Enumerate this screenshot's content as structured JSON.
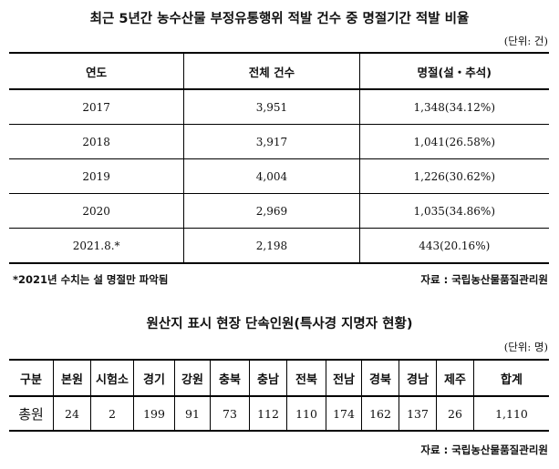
{
  "table1": {
    "title": "최근 5년간 농수산물 부정유통행위 적발 건수 중 명절기간 적발 비율",
    "unit": "(단위: 건)",
    "headers": [
      "연도",
      "전체 건수",
      "명절(설・추석)"
    ],
    "rows": [
      [
        "2017",
        "3,951",
        "1,348(34.12%)"
      ],
      [
        "2018",
        "3,917",
        "1,041(26.58%)"
      ],
      [
        "2019",
        "4,004",
        "1,226(30.62%)"
      ],
      [
        "2020",
        "2,969",
        "1,035(34.86%)"
      ],
      [
        "2021.8.*",
        "2,198",
        "443(20.16%)"
      ]
    ],
    "note": "*2021년 수치는 설 명절만 파악됨",
    "source": "자료 : 국립농산물품질관리원"
  },
  "table2": {
    "title": "원산지 표시 현장 단속인원(특사경 지명자 현황)",
    "unit": "(단위: 명)",
    "headers": [
      "구분",
      "본원",
      "시험소",
      "경기",
      "강원",
      "충북",
      "충남",
      "전북",
      "전남",
      "경북",
      "경남",
      "제주",
      "합계"
    ],
    "row": [
      "총원",
      "24",
      "2",
      "199",
      "91",
      "73",
      "112",
      "110",
      "174",
      "162",
      "137",
      "26",
      "1,110"
    ],
    "source": "자료 : 국립농산물품질관리원"
  }
}
